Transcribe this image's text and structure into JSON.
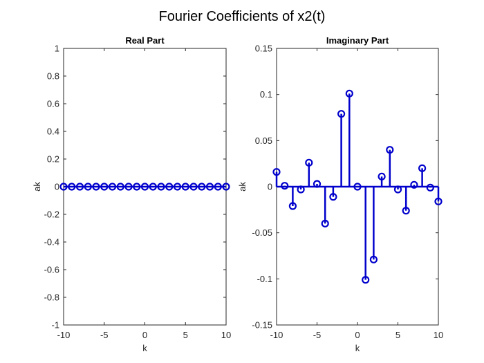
{
  "figure_title": "Fourier Coefficients of x2(t)",
  "stem_color": "#0000cc",
  "chart_data": [
    {
      "type": "stem",
      "title": "Real Part",
      "xlabel": "k",
      "ylabel": "ak",
      "xlim": [
        -10,
        10
      ],
      "ylim": [
        -1,
        1
      ],
      "xticks": [
        -10,
        -5,
        0,
        5,
        10
      ],
      "xtick_labels": [
        "-10",
        "-5",
        "0",
        "5",
        "10"
      ],
      "yticks": [
        -1,
        -0.8,
        -0.6,
        -0.4,
        -0.2,
        0,
        0.2,
        0.4,
        0.6,
        0.8,
        1
      ],
      "ytick_labels": [
        "-1",
        "-0.8",
        "-0.6",
        "-0.4",
        "-0.2",
        "0",
        "0.2",
        "0.4",
        "0.6",
        "0.8",
        "1"
      ],
      "x": [
        -10,
        -9,
        -8,
        -7,
        -6,
        -5,
        -4,
        -3,
        -2,
        -1,
        0,
        1,
        2,
        3,
        4,
        5,
        6,
        7,
        8,
        9,
        10
      ],
      "values": [
        0,
        0,
        0,
        0,
        0,
        0,
        0,
        0,
        0,
        0,
        0,
        0,
        0,
        0,
        0,
        0,
        0,
        0,
        0,
        0,
        0
      ],
      "grid": false
    },
    {
      "type": "stem",
      "title": "Imaginary Part",
      "xlabel": "k",
      "ylabel": "ak",
      "xlim": [
        -10,
        10
      ],
      "ylim": [
        -0.15,
        0.15
      ],
      "xticks": [
        -10,
        -5,
        0,
        5,
        10
      ],
      "xtick_labels": [
        "-10",
        "-5",
        "0",
        "5",
        "10"
      ],
      "yticks": [
        -0.15,
        -0.1,
        -0.05,
        0,
        0.05,
        0.1,
        0.15
      ],
      "ytick_labels": [
        "-0.15",
        "-0.1",
        "-0.05",
        "0",
        "0.05",
        "0.1",
        "0.15"
      ],
      "x": [
        -10,
        -9,
        -8,
        -7,
        -6,
        -5,
        -4,
        -3,
        -2,
        -1,
        0,
        1,
        2,
        3,
        4,
        5,
        6,
        7,
        8,
        9,
        10
      ],
      "values": [
        0.016,
        0.001,
        -0.021,
        -0.003,
        0.026,
        0.003,
        -0.04,
        -0.011,
        0.079,
        0.101,
        0,
        -0.101,
        -0.079,
        0.011,
        0.04,
        -0.003,
        -0.026,
        0.002,
        0.02,
        -0.001,
        -0.016
      ],
      "grid": false
    }
  ]
}
